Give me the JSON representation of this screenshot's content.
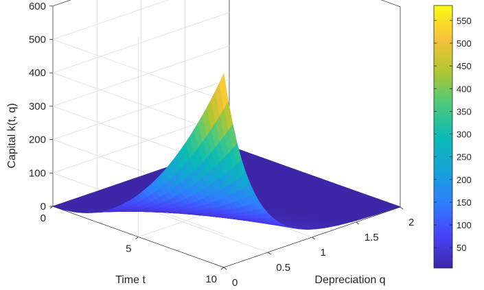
{
  "chart_data": {
    "type": "surface",
    "title": "",
    "xlabel": "Depreciation q",
    "ylabel": "Time t",
    "zlabel": "Capital k(t, q)",
    "x_range": [
      0,
      2
    ],
    "y_range": [
      0,
      10
    ],
    "z_range": [
      0,
      600
    ],
    "x_ticks": [
      "0",
      "0.5",
      "1",
      "1.5",
      "2"
    ],
    "y_ticks": [
      "0",
      "5",
      "10"
    ],
    "z_ticks": [
      "0",
      "100",
      "200",
      "300",
      "400",
      "500",
      "600"
    ],
    "grid": true,
    "colormap": "parula",
    "colorbar": {
      "range": [
        5,
        583
      ],
      "ticks": [
        "50",
        "100",
        "150",
        "200",
        "250",
        "300",
        "350",
        "400",
        "450",
        "500",
        "550"
      ]
    },
    "surface_summary": {
      "peak_value": 580,
      "peak_at": {
        "t": 10,
        "q": 0
      },
      "value_at_t0": 0,
      "value_at_high_q": 0
    }
  }
}
